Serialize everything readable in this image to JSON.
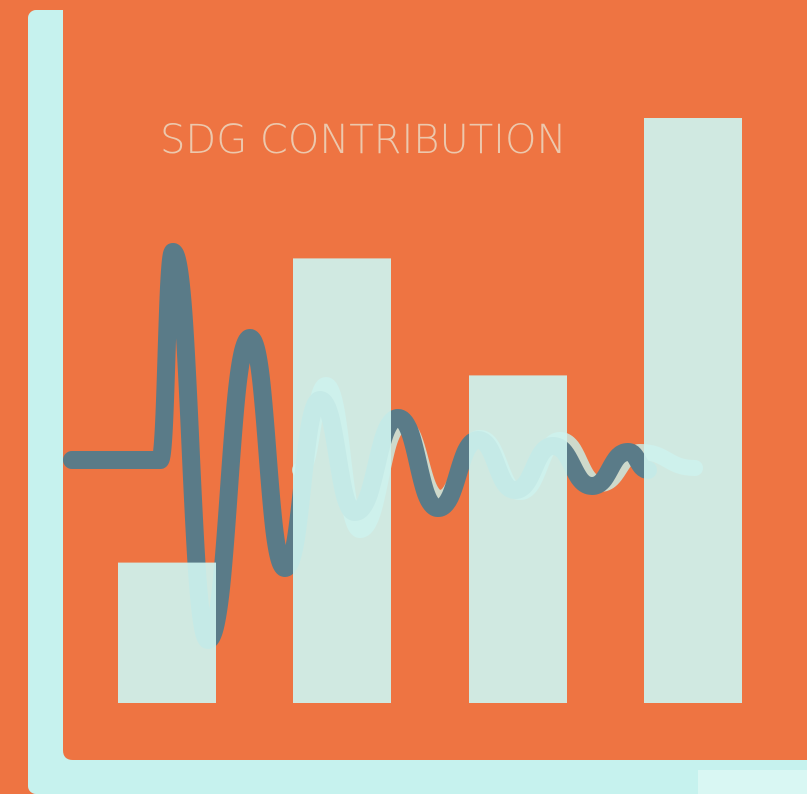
{
  "chart_data": {
    "type": "bar",
    "title": "SDG CONTRIBUTION",
    "categories": [
      null,
      null,
      null,
      null
    ],
    "values": [
      24,
      76,
      56,
      100
    ],
    "color": "#cdf2ee",
    "ylim": [
      0,
      100
    ]
  }
}
